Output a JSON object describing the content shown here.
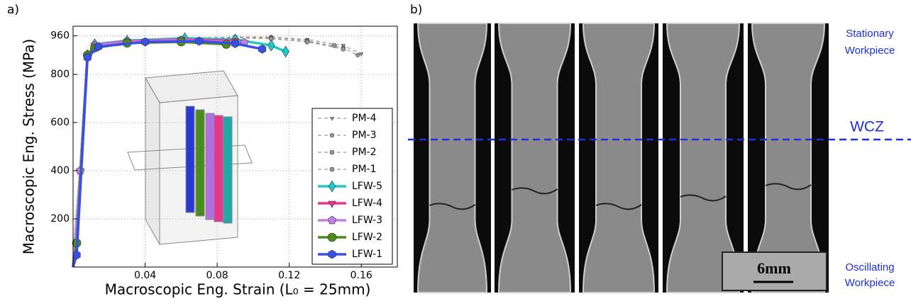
{
  "panel_labels": [
    "a)",
    "b)"
  ],
  "chart_data": {
    "type": "line",
    "x_label": "Macroscopic Eng. Strain (L₀ = 25mm)",
    "y_label": "Macroscopic Eng. Stress (MPa)",
    "xlim": [
      0,
      0.18
    ],
    "ylim": [
      0,
      1000
    ],
    "xticks": [
      0.04,
      0.08,
      0.12,
      0.16
    ],
    "yticks": [
      200,
      400,
      600,
      800,
      960
    ],
    "grid": true,
    "legend": "lower right",
    "series": [
      {
        "name": "PM-4",
        "color": "#999999",
        "dashed": true,
        "marker": "triangle-down",
        "x": [
          0,
          0.004,
          0.008,
          0.012,
          0.03,
          0.06,
          0.09,
          0.11,
          0.13,
          0.15,
          0.16
        ],
        "values": [
          0,
          400,
          880,
          920,
          940,
          950,
          955,
          955,
          945,
          920,
          885
        ]
      },
      {
        "name": "PM-3",
        "color": "#999999",
        "dashed": true,
        "marker": "pentagon",
        "x": [
          0,
          0.004,
          0.008,
          0.012,
          0.03,
          0.06,
          0.09,
          0.11,
          0.13,
          0.15,
          0.158
        ],
        "values": [
          0,
          400,
          880,
          920,
          940,
          950,
          955,
          955,
          940,
          910,
          880
        ]
      },
      {
        "name": "PM-2",
        "color": "#999999",
        "dashed": true,
        "marker": "circle",
        "x": [
          0,
          0.004,
          0.008,
          0.012,
          0.03,
          0.06,
          0.09,
          0.11,
          0.13,
          0.15
        ],
        "values": [
          0,
          400,
          880,
          920,
          940,
          950,
          955,
          950,
          935,
          905
        ]
      },
      {
        "name": "PM-1",
        "color": "#999999",
        "dashed": true,
        "marker": "circle",
        "x": [
          0,
          0.004,
          0.008,
          0.012,
          0.03,
          0.06,
          0.09,
          0.11,
          0.13,
          0.145
        ],
        "values": [
          0,
          400,
          880,
          920,
          940,
          950,
          952,
          948,
          935,
          920
        ]
      },
      {
        "name": "LFW-5",
        "color": "#22c8c8",
        "dashed": false,
        "marker": "diamond",
        "x": [
          0,
          0.004,
          0.008,
          0.012,
          0.03,
          0.062,
          0.09,
          0.11,
          0.118
        ],
        "values": [
          0,
          400,
          880,
          925,
          940,
          950,
          945,
          920,
          895
        ]
      },
      {
        "name": "LFW-4",
        "color": "#e8348a",
        "dashed": false,
        "marker": "triangle-down",
        "x": [
          0,
          0.004,
          0.008,
          0.012,
          0.03,
          0.06,
          0.09
        ],
        "values": [
          0,
          400,
          880,
          922,
          938,
          945,
          940
        ]
      },
      {
        "name": "LFW-3",
        "color": "#c080e8",
        "dashed": false,
        "marker": "pentagon",
        "x": [
          0,
          0.004,
          0.008,
          0.012,
          0.03,
          0.06,
          0.095
        ],
        "values": [
          0,
          400,
          880,
          920,
          935,
          942,
          932
        ]
      },
      {
        "name": "LFW-2",
        "color": "#4a8c1c",
        "dashed": false,
        "marker": "circle",
        "x": [
          0,
          0.002,
          0.008,
          0.012,
          0.03,
          0.06,
          0.085
        ],
        "values": [
          0,
          100,
          880,
          910,
          930,
          935,
          925
        ]
      },
      {
        "name": "LFW-1",
        "color": "#3a4ee8",
        "dashed": false,
        "marker": "hexagon",
        "x": [
          0,
          0.002,
          0.008,
          0.014,
          0.04,
          0.07,
          0.09,
          0.105
        ],
        "values": [
          0,
          50,
          870,
          915,
          935,
          938,
          928,
          905
        ]
      }
    ]
  },
  "photo_panel": {
    "top_label": [
      "Stationary",
      "Workpiece"
    ],
    "interface_label": "WCZ",
    "bottom_label": [
      "Oscillating",
      "Workpiece"
    ],
    "scale_bar": "6mm"
  }
}
